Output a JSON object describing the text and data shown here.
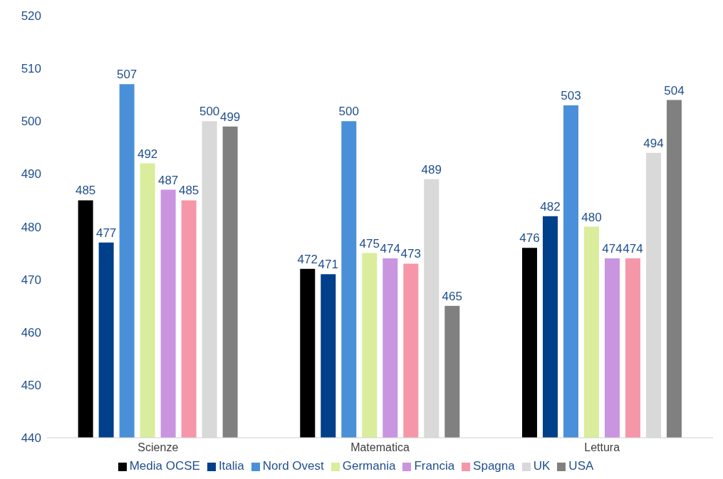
{
  "chart_data": {
    "type": "bar",
    "categories": [
      "Scienze",
      "Matematica",
      "Lettura"
    ],
    "series": [
      {
        "name": "Media OCSE",
        "color": "#000000",
        "values": [
          485,
          472,
          476
        ]
      },
      {
        "name": "Italia",
        "color": "#003f8a",
        "values": [
          477,
          471,
          482
        ]
      },
      {
        "name": "Nord Ovest",
        "color": "#4a90d9",
        "values": [
          507,
          500,
          503
        ]
      },
      {
        "name": "Germania",
        "color": "#d9ed9c",
        "values": [
          492,
          475,
          480
        ]
      },
      {
        "name": "Francia",
        "color": "#c994e0",
        "values": [
          487,
          474,
          474
        ]
      },
      {
        "name": "Spagna",
        "color": "#f597a8",
        "values": [
          485,
          473,
          474
        ]
      },
      {
        "name": "UK",
        "color": "#d9d9d9",
        "values": [
          500,
          489,
          494
        ]
      },
      {
        "name": "USA",
        "color": "#808080",
        "values": [
          499,
          465,
          504
        ]
      }
    ],
    "ylim": [
      440,
      520
    ],
    "yticks": [
      440,
      450,
      460,
      470,
      480,
      490,
      500,
      510,
      520
    ],
    "grid": false,
    "legend": "bottom",
    "data_labels": true
  }
}
